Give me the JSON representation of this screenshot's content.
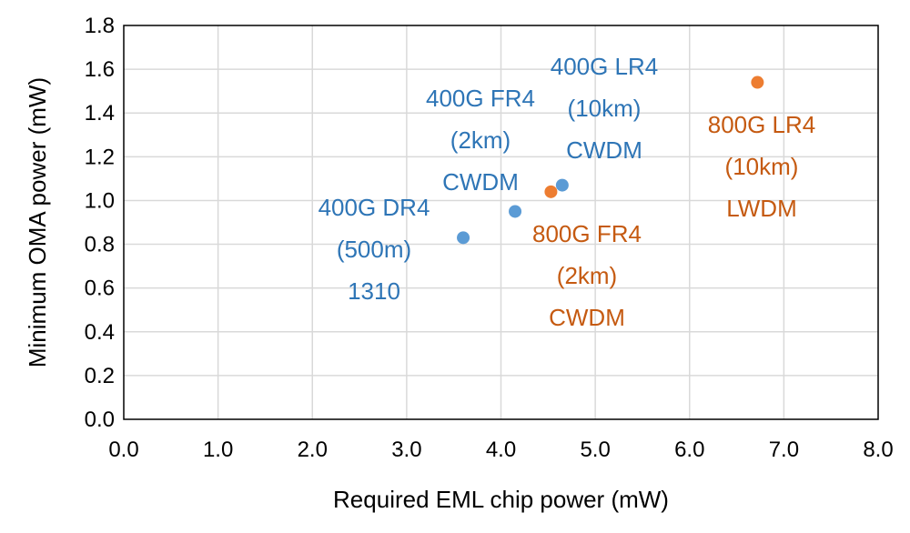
{
  "chart_data": {
    "type": "scatter",
    "title": "",
    "xlabel": "Required EML chip power (mW)",
    "ylabel": "Minimum OMA power (mW)",
    "xlim": [
      0,
      8
    ],
    "ylim": [
      0,
      1.8
    ],
    "x_ticks": [
      "0.0",
      "1.0",
      "2.0",
      "3.0",
      "4.0",
      "5.0",
      "6.0",
      "7.0",
      "8.0"
    ],
    "y_ticks": [
      "0.0",
      "0.2",
      "0.4",
      "0.6",
      "0.8",
      "1.0",
      "1.2",
      "1.4",
      "1.6",
      "1.8"
    ],
    "grid": true,
    "legend": "none",
    "series": [
      {
        "color": "#5B9BD5",
        "text_color": "#2E75B6",
        "points": [
          {
            "x": 3.6,
            "y": 0.83,
            "label": [
              "400G DR4",
              "(500m)",
              "1310"
            ]
          },
          {
            "x": 4.15,
            "y": 0.95,
            "label": [
              "400G FR4",
              "(2km)",
              "CWDM"
            ]
          },
          {
            "x": 4.65,
            "y": 1.07,
            "label": [
              "400G LR4",
              "(10km)",
              "CWDM"
            ]
          }
        ]
      },
      {
        "color": "#ED7D31",
        "text_color": "#C55A11",
        "points": [
          {
            "x": 4.53,
            "y": 1.04,
            "label": [
              "800G FR4",
              "(2km)",
              "CWDM"
            ]
          },
          {
            "x": 6.72,
            "y": 1.54,
            "label": [
              "800G LR4",
              "(10km)",
              "LWDM"
            ]
          }
        ]
      }
    ]
  }
}
